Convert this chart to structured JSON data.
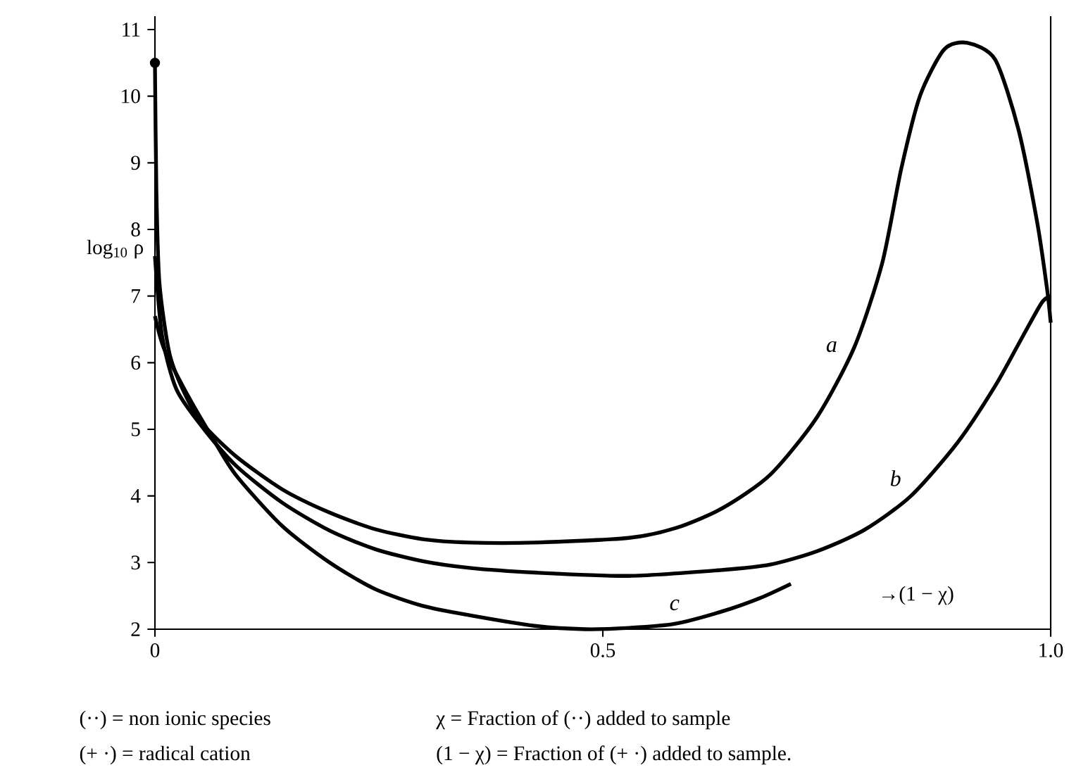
{
  "chart_data": {
    "type": "line",
    "ylabel": "log$_{10}$ ρ",
    "xlabel": "→(1 − χ)",
    "xlim": [
      0,
      1
    ],
    "ylim": [
      2,
      11.2
    ],
    "xticks": [
      0,
      0.5,
      {
        "value": 1,
        "label": "1.0"
      }
    ],
    "yticks": [
      2,
      3,
      4,
      5,
      6,
      7,
      8,
      9,
      10,
      11
    ],
    "line_style": "solid",
    "series": [
      {
        "name": "a",
        "color": "#000000",
        "x": [
          0,
          0.0016,
          0.005,
          0.016,
          0.031,
          0.052,
          0.09,
          0.142,
          0.195,
          0.246,
          0.299,
          0.351,
          0.424,
          0.529,
          0.582,
          0.634,
          0.687,
          0.739,
          0.781,
          0.812,
          0.833,
          0.854,
          0.881,
          0.907,
          0.938,
          0.964,
          0.985,
          0.996,
          1.0
        ],
        "values": [
          10.5,
          8.6,
          7.2,
          6.15,
          5.6,
          5.1,
          4.6,
          4.1,
          3.75,
          3.5,
          3.35,
          3.3,
          3.3,
          3.37,
          3.52,
          3.82,
          4.32,
          5.18,
          6.24,
          7.5,
          8.9,
          10.0,
          10.7,
          10.8,
          10.55,
          9.5,
          8.1,
          7.1,
          6.6
        ]
      },
      {
        "name": "b",
        "color": "#000000",
        "x": [
          0,
          0.008,
          0.024,
          0.052,
          0.09,
          0.142,
          0.195,
          0.246,
          0.299,
          0.351,
          0.424,
          0.529,
          0.634,
          0.687,
          0.739,
          0.792,
          0.844,
          0.896,
          0.938,
          0.969,
          0.99,
          1.0
        ],
        "values": [
          7.6,
          6.4,
          5.6,
          5.05,
          4.46,
          3.9,
          3.48,
          3.2,
          3.02,
          2.92,
          2.85,
          2.8,
          2.89,
          2.97,
          3.17,
          3.49,
          4.0,
          4.8,
          5.65,
          6.4,
          6.9,
          7.0
        ]
      },
      {
        "name": "c",
        "color": "#000000",
        "x": [
          0,
          0.0105,
          0.037,
          0.063,
          0.09,
          0.142,
          0.195,
          0.246,
          0.299,
          0.351,
          0.424,
          0.48,
          0.53,
          0.58,
          0.634,
          0.676,
          0.71
        ],
        "values": [
          6.7,
          6.2,
          5.5,
          4.9,
          4.32,
          3.55,
          3.0,
          2.6,
          2.35,
          2.21,
          2.05,
          2.0,
          2.02,
          2.08,
          2.27,
          2.47,
          2.68
        ]
      },
      {
        "type": "scatter",
        "marker": "circle",
        "color": "#000000",
        "x": [
          0
        ],
        "values": [
          10.5
        ]
      }
    ],
    "annotations": [
      "(··) = non ionic species",
      "χ = Fraction of (··) added to sample",
      "(+ ·) = radical cation",
      "(1 − χ) = Fraction of (+ ·) added to sample."
    ]
  }
}
